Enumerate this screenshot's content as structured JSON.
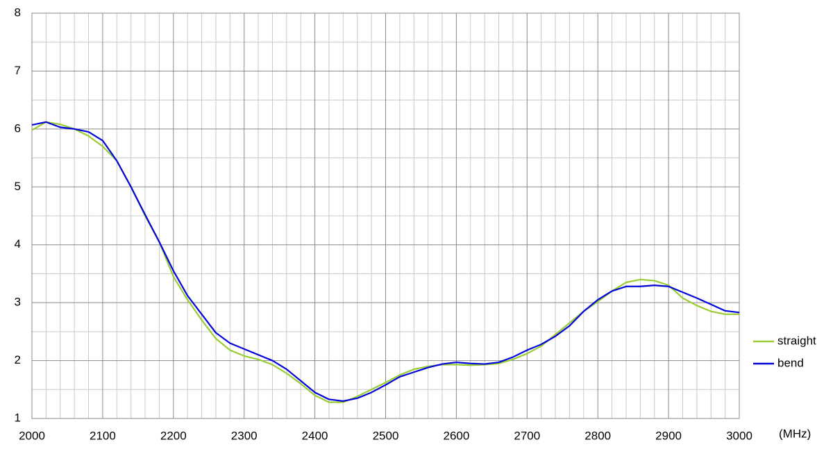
{
  "chart_data": {
    "type": "line",
    "x_unit": "(MHz)",
    "x": [
      2000,
      2020,
      2040,
      2060,
      2080,
      2100,
      2120,
      2140,
      2160,
      2180,
      2200,
      2220,
      2240,
      2260,
      2280,
      2300,
      2320,
      2340,
      2360,
      2380,
      2400,
      2420,
      2440,
      2460,
      2480,
      2500,
      2520,
      2540,
      2560,
      2580,
      2600,
      2620,
      2640,
      2660,
      2680,
      2700,
      2720,
      2740,
      2760,
      2780,
      2800,
      2820,
      2840,
      2860,
      2880,
      2900,
      2920,
      2940,
      2960,
      2980,
      3000
    ],
    "series": [
      {
        "name": "straight",
        "color": "#99cc33",
        "values": [
          5.98,
          6.12,
          6.08,
          6.0,
          5.88,
          5.7,
          5.45,
          5.0,
          4.5,
          4.05,
          3.45,
          3.05,
          2.7,
          2.38,
          2.18,
          2.08,
          2.02,
          1.93,
          1.78,
          1.6,
          1.4,
          1.28,
          1.28,
          1.38,
          1.5,
          1.62,
          1.75,
          1.85,
          1.9,
          1.93,
          1.93,
          1.92,
          1.93,
          1.95,
          2.02,
          2.12,
          2.25,
          2.45,
          2.65,
          2.85,
          3.02,
          3.2,
          3.35,
          3.4,
          3.38,
          3.3,
          3.08,
          2.95,
          2.85,
          2.8,
          2.8
        ]
      },
      {
        "name": "bend",
        "color": "#0000dd",
        "values": [
          6.07,
          6.12,
          6.03,
          6.0,
          5.95,
          5.8,
          5.45,
          5.0,
          4.52,
          4.05,
          3.55,
          3.12,
          2.8,
          2.48,
          2.3,
          2.2,
          2.1,
          2.0,
          1.85,
          1.65,
          1.45,
          1.33,
          1.3,
          1.35,
          1.45,
          1.58,
          1.72,
          1.8,
          1.88,
          1.94,
          1.97,
          1.95,
          1.94,
          1.97,
          2.06,
          2.18,
          2.28,
          2.42,
          2.6,
          2.85,
          3.05,
          3.2,
          3.28,
          3.28,
          3.3,
          3.28,
          3.18,
          3.08,
          2.97,
          2.86,
          2.83
        ]
      }
    ],
    "xlim": [
      2000,
      3000
    ],
    "xticks": [
      2000,
      2100,
      2200,
      2300,
      2400,
      2500,
      2600,
      2700,
      2800,
      2900,
      3000
    ],
    "ylim": [
      1,
      8
    ],
    "yticks": [
      1,
      2,
      3,
      4,
      5,
      6,
      7,
      8
    ],
    "grid": true,
    "legend": "right"
  }
}
